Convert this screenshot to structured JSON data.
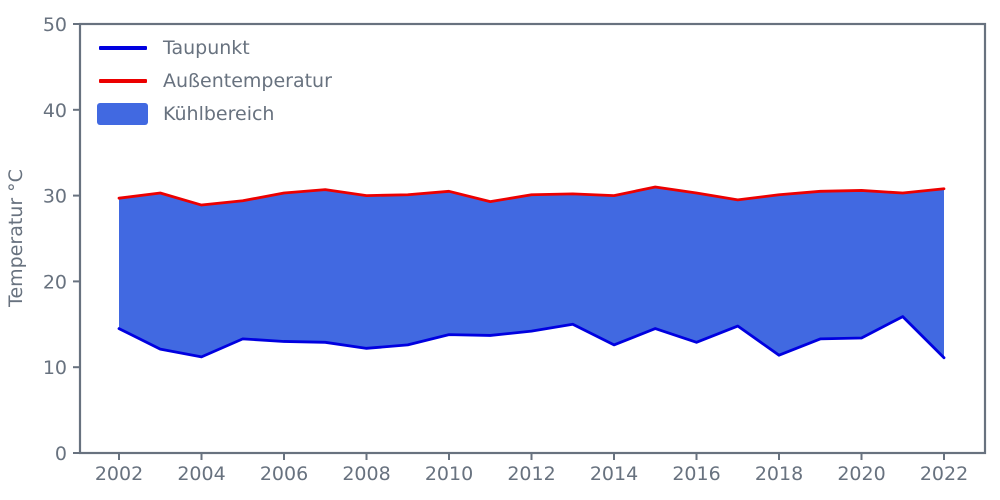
{
  "colors": {
    "axis": "#68727f",
    "taupunkt_line": "#0000e0",
    "aussentemperatur_line": "#ec0000",
    "kuehlbereich_fill": "#4169e1",
    "background": "#ffffff"
  },
  "legend": {
    "items": [
      {
        "label": "Taupunkt",
        "kind": "line",
        "color": "#0000e0"
      },
      {
        "label": "Außentemperatur",
        "kind": "line",
        "color": "#ec0000"
      },
      {
        "label": "Kühlbereich",
        "kind": "patch",
        "color": "#4169e1"
      }
    ]
  },
  "chart_data": {
    "type": "area",
    "title": "",
    "xlabel": "",
    "ylabel": "Temperatur °C",
    "ylim": [
      0,
      50
    ],
    "xlim": [
      2002,
      2022
    ],
    "grid": false,
    "box_spines": true,
    "legend_position": "upper-left",
    "x": [
      2002,
      2003,
      2004,
      2005,
      2006,
      2007,
      2008,
      2009,
      2010,
      2011,
      2012,
      2013,
      2014,
      2015,
      2016,
      2017,
      2018,
      2019,
      2020,
      2021,
      2022
    ],
    "series": [
      {
        "name": "Taupunkt",
        "color": "#0000e0",
        "values": [
          14.5,
          12.1,
          11.2,
          13.3,
          13.0,
          12.9,
          12.2,
          12.6,
          13.8,
          13.7,
          14.2,
          15.0,
          12.6,
          14.5,
          12.9,
          14.8,
          11.4,
          13.3,
          13.4,
          15.9,
          11.1
        ]
      },
      {
        "name": "Außentemperatur",
        "color": "#ec0000",
        "values": [
          29.7,
          30.3,
          28.9,
          29.4,
          30.3,
          30.7,
          30.0,
          30.1,
          30.5,
          29.3,
          30.1,
          30.2,
          30.0,
          31.0,
          30.3,
          29.5,
          30.1,
          30.5,
          30.6,
          30.3,
          30.8
        ]
      }
    ],
    "fill_between": {
      "name": "Kühlbereich",
      "lower": "Taupunkt",
      "upper": "Außentemperatur",
      "color": "#4169e1"
    },
    "xticks": [
      2002,
      2004,
      2006,
      2008,
      2010,
      2012,
      2014,
      2016,
      2018,
      2020,
      2022
    ],
    "yticks": [
      0,
      10,
      20,
      30,
      40,
      50
    ]
  }
}
